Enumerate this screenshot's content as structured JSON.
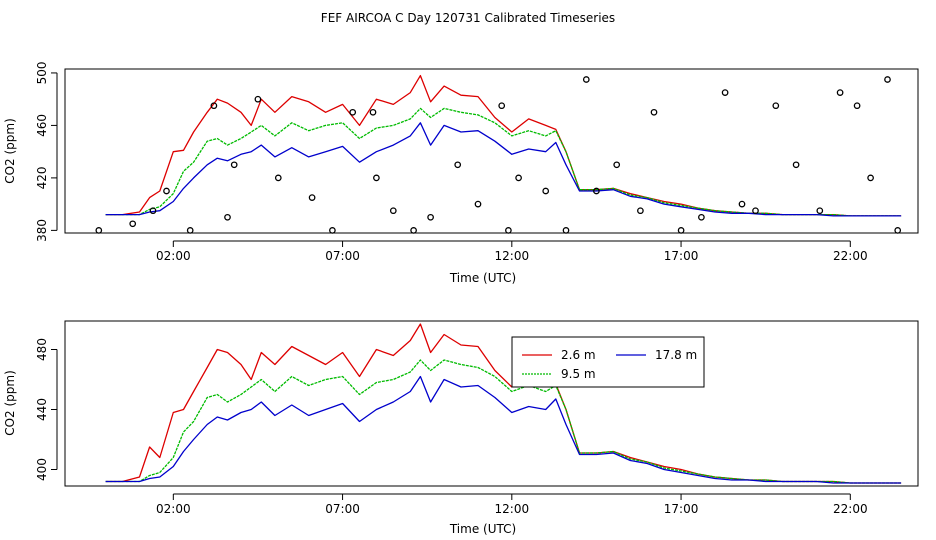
{
  "title": "FEF AIRCOA C  Day 120731  Calibrated Timeseries",
  "colors": {
    "s26": "#dd0000",
    "s95": "#00bb00",
    "s178": "#0000cc",
    "axis": "#000000"
  },
  "chart_data": [
    {
      "type": "line",
      "xlabel": "Time (UTC)",
      "ylabel": "CO2 (ppm)",
      "xlim": [
        -1.2,
        24.0
      ],
      "ylim": [
        378,
        503
      ],
      "xticks": [
        2,
        7,
        12,
        17,
        22
      ],
      "xtick_labels": [
        "02:00",
        "07:00",
        "12:00",
        "17:00",
        "22:00"
      ],
      "yticks": [
        380,
        420,
        460,
        500
      ],
      "ytick_labels": [
        "380",
        "420",
        "460",
        "500"
      ],
      "grid": false,
      "series": [
        {
          "name": "2.6 m",
          "color": "#dd0000",
          "x": [
            0,
            0.5,
            1,
            1.3,
            1.6,
            2,
            2.3,
            2.6,
            3,
            3.3,
            3.6,
            4,
            4.3,
            4.6,
            5,
            5.5,
            6,
            6.5,
            7,
            7.5,
            8,
            8.5,
            9,
            9.3,
            9.6,
            10,
            10.5,
            11,
            11.5,
            12,
            12.5,
            13,
            13.3,
            13.6,
            14,
            14.5,
            15,
            15.5,
            16,
            16.5,
            17,
            17.5,
            18,
            18.5,
            19,
            19.5,
            20,
            20.5,
            21,
            21.5,
            22,
            22.5,
            23,
            23.5
          ],
          "y": [
            392,
            392,
            394,
            405,
            410,
            440,
            441,
            455,
            470,
            480,
            477,
            470,
            460,
            480,
            470,
            482,
            478,
            470,
            476,
            460,
            480,
            476,
            485,
            498,
            478,
            490,
            483,
            482,
            466,
            455,
            465,
            460,
            457,
            440,
            411,
            411,
            412,
            408,
            405,
            402,
            400,
            397,
            395,
            394,
            393,
            393,
            392,
            392,
            392,
            392,
            391,
            391,
            391,
            391
          ]
        },
        {
          "name": "9.5 m",
          "color": "#00bb00",
          "x": [
            0,
            0.5,
            1,
            1.3,
            1.6,
            2,
            2.3,
            2.6,
            3,
            3.3,
            3.6,
            4,
            4.3,
            4.6,
            5,
            5.5,
            6,
            6.5,
            7,
            7.5,
            8,
            8.5,
            9,
            9.3,
            9.6,
            10,
            10.5,
            11,
            11.5,
            12,
            12.5,
            13,
            13.3,
            13.6,
            14,
            14.5,
            15,
            15.5,
            16,
            16.5,
            17,
            17.5,
            18,
            18.5,
            19,
            19.5,
            20,
            20.5,
            21,
            21.5,
            22,
            22.5,
            23,
            23.5
          ],
          "y": [
            392,
            392,
            392,
            396,
            398,
            408,
            425,
            432,
            448,
            450,
            445,
            450,
            455,
            460,
            452,
            462,
            456,
            460,
            462,
            450,
            458,
            460,
            465,
            473,
            466,
            473,
            470,
            468,
            462,
            452,
            456,
            452,
            456,
            440,
            411,
            411,
            412,
            407,
            405,
            401,
            399,
            397,
            395,
            394,
            393,
            393,
            392,
            392,
            392,
            392,
            391,
            391,
            391,
            391
          ]
        },
        {
          "name": "17.8 m",
          "color": "#0000cc",
          "x": [
            0,
            0.5,
            1,
            1.3,
            1.6,
            2,
            2.3,
            2.6,
            3,
            3.3,
            3.6,
            4,
            4.3,
            4.6,
            5,
            5.5,
            6,
            6.5,
            7,
            7.5,
            8,
            8.5,
            9,
            9.3,
            9.6,
            10,
            10.5,
            11,
            11.5,
            12,
            12.5,
            13,
            13.3,
            13.6,
            14,
            14.5,
            15,
            15.5,
            16,
            16.5,
            17,
            17.5,
            18,
            18.5,
            19,
            19.5,
            20,
            20.5,
            21,
            21.5,
            22,
            22.5,
            23,
            23.5
          ],
          "y": [
            392,
            392,
            392,
            394,
            395,
            402,
            412,
            420,
            430,
            435,
            433,
            438,
            440,
            445,
            436,
            443,
            436,
            440,
            444,
            432,
            440,
            445,
            452,
            462,
            445,
            460,
            455,
            456,
            448,
            438,
            442,
            440,
            447,
            430,
            410,
            410,
            411,
            406,
            404,
            400,
            398,
            396,
            394,
            393,
            393,
            392,
            392,
            392,
            392,
            391,
            391,
            391,
            391,
            391
          ]
        }
      ],
      "markers": {
        "x": [
          -0.2,
          0.8,
          1.4,
          1.8,
          2.5,
          3.2,
          3.6,
          3.8,
          4.5,
          5.1,
          6.1,
          6.7,
          7.3,
          7.9,
          8.0,
          8.5,
          9.1,
          9.6,
          10.4,
          11.0,
          11.7,
          11.9,
          12.2,
          13.0,
          13.6,
          14.2,
          14.5,
          15.1,
          15.8,
          16.2,
          17.0,
          17.6,
          18.3,
          18.8,
          19.2,
          19.8,
          20.4,
          21.1,
          21.7,
          22.2,
          22.6,
          23.1,
          23.4
        ],
        "y": [
          380,
          385,
          395,
          410,
          380,
          475,
          390,
          430,
          480,
          420,
          405,
          380,
          470,
          470,
          420,
          395,
          380,
          390,
          430,
          400,
          475,
          380,
          420,
          410,
          380,
          495,
          410,
          430,
          395,
          470,
          380,
          390,
          485,
          400,
          395,
          475,
          430,
          395,
          485,
          475,
          420,
          495,
          380
        ]
      }
    },
    {
      "type": "line",
      "xlabel": "Time (UTC)",
      "ylabel": "CO2 (ppm)",
      "xlim": [
        -1.2,
        24.0
      ],
      "ylim": [
        389,
        499
      ],
      "xticks": [
        2,
        7,
        12,
        17,
        22
      ],
      "xtick_labels": [
        "02:00",
        "07:00",
        "12:00",
        "17:00",
        "22:00"
      ],
      "yticks": [
        400,
        440,
        480
      ],
      "ytick_labels": [
        "400",
        "440",
        "480"
      ],
      "grid": false,
      "legend": {
        "position": "top-right-inner",
        "entries": [
          "2.6 m",
          "17.8 m",
          "9.5 m"
        ]
      },
      "series": [
        {
          "name": "2.6 m",
          "color": "#dd0000",
          "x": [
            0,
            0.5,
            1,
            1.3,
            1.6,
            2,
            2.3,
            2.6,
            3,
            3.3,
            3.6,
            4,
            4.3,
            4.6,
            5,
            5.5,
            6,
            6.5,
            7,
            7.5,
            8,
            8.5,
            9,
            9.3,
            9.6,
            10,
            10.5,
            11,
            11.5,
            12,
            12.5,
            13,
            13.3,
            13.6,
            14,
            14.5,
            15,
            15.5,
            16,
            16.5,
            17,
            17.5,
            18,
            18.5,
            19,
            19.5,
            20,
            20.5,
            21,
            21.5,
            22,
            22.5,
            23,
            23.5
          ],
          "y": [
            392,
            392,
            395,
            415,
            408,
            438,
            440,
            452,
            468,
            480,
            478,
            470,
            460,
            478,
            470,
            482,
            476,
            470,
            478,
            462,
            480,
            476,
            486,
            497,
            478,
            490,
            483,
            482,
            466,
            455,
            465,
            460,
            457,
            440,
            411,
            411,
            412,
            408,
            405,
            402,
            400,
            397,
            395,
            394,
            393,
            393,
            392,
            392,
            392,
            392,
            391,
            391,
            391,
            391
          ]
        },
        {
          "name": "9.5 m",
          "color": "#00bb00",
          "x": [
            0,
            0.5,
            1,
            1.3,
            1.6,
            2,
            2.3,
            2.6,
            3,
            3.3,
            3.6,
            4,
            4.3,
            4.6,
            5,
            5.5,
            6,
            6.5,
            7,
            7.5,
            8,
            8.5,
            9,
            9.3,
            9.6,
            10,
            10.5,
            11,
            11.5,
            12,
            12.5,
            13,
            13.3,
            13.6,
            14,
            14.5,
            15,
            15.5,
            16,
            16.5,
            17,
            17.5,
            18,
            18.5,
            19,
            19.5,
            20,
            20.5,
            21,
            21.5,
            22,
            22.5,
            23,
            23.5
          ],
          "y": [
            392,
            392,
            392,
            396,
            398,
            408,
            425,
            432,
            448,
            450,
            445,
            450,
            455,
            460,
            452,
            462,
            456,
            460,
            462,
            450,
            458,
            460,
            465,
            473,
            466,
            473,
            470,
            468,
            462,
            452,
            456,
            452,
            456,
            440,
            411,
            411,
            412,
            407,
            405,
            401,
            399,
            397,
            395,
            394,
            393,
            393,
            392,
            392,
            392,
            392,
            391,
            391,
            391,
            391
          ]
        },
        {
          "name": "17.8 m",
          "color": "#0000cc",
          "x": [
            0,
            0.5,
            1,
            1.3,
            1.6,
            2,
            2.3,
            2.6,
            3,
            3.3,
            3.6,
            4,
            4.3,
            4.6,
            5,
            5.5,
            6,
            6.5,
            7,
            7.5,
            8,
            8.5,
            9,
            9.3,
            9.6,
            10,
            10.5,
            11,
            11.5,
            12,
            12.5,
            13,
            13.3,
            13.6,
            14,
            14.5,
            15,
            15.5,
            16,
            16.5,
            17,
            17.5,
            18,
            18.5,
            19,
            19.5,
            20,
            20.5,
            21,
            21.5,
            22,
            22.5,
            23,
            23.5
          ],
          "y": [
            392,
            392,
            392,
            394,
            395,
            402,
            412,
            420,
            430,
            435,
            433,
            438,
            440,
            445,
            436,
            443,
            436,
            440,
            444,
            432,
            440,
            445,
            452,
            462,
            445,
            460,
            455,
            456,
            448,
            438,
            442,
            440,
            447,
            430,
            410,
            410,
            411,
            406,
            404,
            400,
            398,
            396,
            394,
            393,
            393,
            392,
            392,
            392,
            392,
            391,
            391,
            391,
            391,
            391
          ]
        }
      ]
    }
  ]
}
